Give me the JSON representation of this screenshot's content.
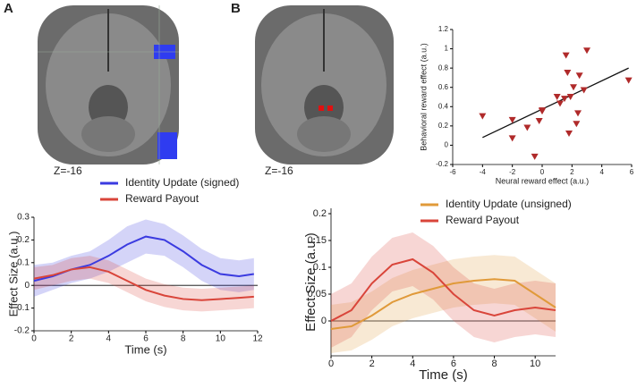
{
  "panel_labels": [
    "A",
    "B"
  ],
  "brain_labels": [
    "Z=-16",
    "Z=-16"
  ],
  "chart_data": [
    {
      "type": "line",
      "xlabel": "Time (s)",
      "ylabel": "Effect Size (a.u.)",
      "xlim": [
        0,
        12
      ],
      "xticks": [
        0,
        2,
        4,
        6,
        8,
        10,
        12
      ],
      "ylim": [
        -0.2,
        0.3
      ],
      "yticks": [
        -0.2,
        -0.1,
        0,
        0.1,
        0.2,
        0.3
      ],
      "x": [
        0,
        1,
        2,
        3,
        4,
        5,
        6,
        7,
        8,
        9,
        10,
        11,
        11.8
      ],
      "series": [
        {
          "name": "Identity Update (signed)",
          "color": "#3b3be0",
          "values": [
            0.02,
            0.04,
            0.07,
            0.09,
            0.13,
            0.18,
            0.215,
            0.2,
            0.15,
            0.09,
            0.05,
            0.04,
            0.05
          ],
          "lower": [
            -0.05,
            -0.02,
            0.01,
            0.03,
            0.06,
            0.1,
            0.14,
            0.13,
            0.08,
            0.02,
            -0.02,
            -0.03,
            -0.02
          ],
          "upper": [
            0.09,
            0.1,
            0.13,
            0.15,
            0.2,
            0.26,
            0.29,
            0.27,
            0.22,
            0.16,
            0.12,
            0.11,
            0.12
          ]
        },
        {
          "name": "Reward Payout",
          "color": "#d9453a",
          "values": [
            0.03,
            0.045,
            0.07,
            0.08,
            0.06,
            0.02,
            -0.02,
            -0.045,
            -0.06,
            -0.065,
            -0.06,
            -0.055,
            -0.05
          ],
          "lower": [
            -0.02,
            0.0,
            0.02,
            0.03,
            0.01,
            -0.03,
            -0.07,
            -0.095,
            -0.11,
            -0.115,
            -0.11,
            -0.105,
            -0.1
          ],
          "upper": [
            0.08,
            0.09,
            0.12,
            0.13,
            0.11,
            0.07,
            0.03,
            0.005,
            -0.01,
            -0.015,
            -0.01,
            -0.005,
            0.0
          ]
        }
      ]
    },
    {
      "type": "line",
      "xlabel": "Time (s)",
      "ylabel": "Effect Size (a.u.)",
      "xlim": [
        0,
        11
      ],
      "xticks": [
        0,
        2,
        4,
        6,
        8,
        10
      ],
      "ylim": [
        -0.065,
        0.21
      ],
      "yticks": [
        0,
        0.05,
        0.1,
        0.15,
        0.2
      ],
      "x": [
        0,
        1,
        2,
        3,
        4,
        5,
        6,
        7,
        8,
        9,
        10,
        11
      ],
      "series": [
        {
          "name": "Identity Update (unsigned)",
          "color": "#e09a3a",
          "values": [
            -0.015,
            -0.01,
            0.01,
            0.035,
            0.05,
            0.06,
            0.07,
            0.075,
            0.078,
            0.075,
            0.05,
            0.025
          ],
          "lower": [
            -0.06,
            -0.055,
            -0.035,
            -0.01,
            0.005,
            0.015,
            0.025,
            0.03,
            0.033,
            0.03,
            0.005,
            -0.02
          ],
          "upper": [
            0.03,
            0.035,
            0.055,
            0.08,
            0.095,
            0.105,
            0.115,
            0.12,
            0.123,
            0.12,
            0.095,
            0.07
          ]
        },
        {
          "name": "Reward Payout",
          "color": "#d9453a",
          "values": [
            0,
            0.02,
            0.07,
            0.105,
            0.115,
            0.09,
            0.05,
            0.02,
            0.01,
            0.02,
            0.025,
            0.02
          ],
          "lower": [
            -0.05,
            -0.03,
            0.02,
            0.055,
            0.065,
            0.04,
            0.0,
            -0.03,
            -0.04,
            -0.03,
            -0.025,
            -0.03
          ],
          "upper": [
            0.05,
            0.07,
            0.12,
            0.155,
            0.165,
            0.14,
            0.1,
            0.07,
            0.06,
            0.07,
            0.075,
            0.07
          ]
        }
      ]
    },
    {
      "type": "scatter",
      "xlabel": "Neural reward effect (a.u.)",
      "ylabel": "Behavioral reward effect (a.u.)",
      "xlim": [
        -6,
        6
      ],
      "xticks": [
        -6,
        -4,
        -2,
        0,
        2,
        4,
        6
      ],
      "ylim": [
        -0.2,
        1.2
      ],
      "yticks": [
        -0.2,
        0,
        0.2,
        0.4,
        0.6,
        0.8,
        1,
        1.2
      ],
      "color": "#b02a2a",
      "x": [
        -4,
        -2,
        -2,
        -1,
        -0.5,
        -0.2,
        0,
        0,
        1,
        1.2,
        1.5,
        1.6,
        1.7,
        1.8,
        1.9,
        2.1,
        2.3,
        2.4,
        2.5,
        2.8,
        3,
        5.8
      ],
      "values": [
        0.3,
        0.26,
        0.07,
        0.18,
        -0.12,
        0.25,
        0.36,
        0.35,
        0.5,
        0.43,
        0.48,
        0.93,
        0.75,
        0.12,
        0.5,
        0.6,
        0.22,
        0.33,
        0.72,
        0.57,
        0.98,
        0.67
      ],
      "fit_line": {
        "x": [
          -4,
          5.8
        ],
        "y": [
          0.08,
          0.8
        ]
      }
    }
  ]
}
